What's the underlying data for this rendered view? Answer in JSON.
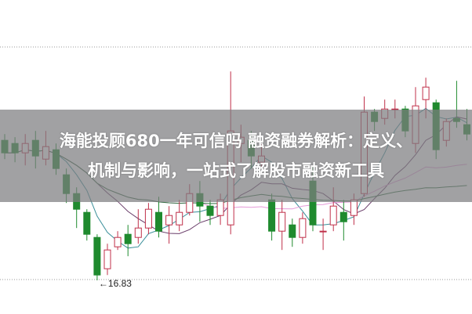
{
  "headline": {
    "line1": "海能投顾680一年可信吗 融资融券解析：定义、",
    "line2": "机制与影响，一站式了解股市融资新工具"
  },
  "chart_data": {
    "type": "candlestick",
    "low_marker_label": "←16.83",
    "low_value": 16.83,
    "colors": {
      "up": "#c0304a",
      "down": "#1f8a2e",
      "ma5": "#3a8f9a",
      "ma10": "#6a3d6a",
      "ma20": "#e59ad8",
      "ma60": "#2f6e3f",
      "grid": "#999999"
    },
    "grid": "dotted horizontal",
    "ohlc": [
      [
        21.3,
        20.9,
        21.5,
        20.7
      ],
      [
        21.2,
        20.9,
        21.4,
        20.6
      ],
      [
        20.9,
        21.2,
        21.5,
        20.5
      ],
      [
        21.3,
        20.8,
        21.6,
        20.4
      ],
      [
        20.7,
        21.1,
        21.6,
        20.5
      ],
      [
        21.0,
        20.4,
        21.2,
        20.2
      ],
      [
        20.2,
        19.6,
        20.4,
        19.3
      ],
      [
        19.6,
        19.1,
        19.8,
        18.5
      ],
      [
        19.0,
        18.3,
        19.1,
        18.1
      ],
      [
        18.2,
        17.0,
        18.3,
        16.83
      ],
      [
        17.2,
        17.8,
        18.0,
        17.0
      ],
      [
        17.9,
        18.2,
        18.4,
        17.8
      ],
      [
        18.3,
        18.0,
        18.6,
        17.6
      ],
      [
        18.2,
        18.5,
        19.1,
        18.0
      ],
      [
        18.5,
        19.1,
        19.3,
        18.3
      ],
      [
        19.0,
        18.4,
        19.5,
        18.2
      ],
      [
        18.6,
        18.9,
        19.2,
        18.0
      ],
      [
        18.6,
        19.0,
        19.4,
        18.4
      ],
      [
        19.0,
        19.6,
        19.9,
        18.9
      ],
      [
        19.6,
        19.2,
        20.0,
        18.7
      ],
      [
        19.2,
        18.9,
        19.4,
        18.6
      ],
      [
        18.9,
        19.4,
        19.6,
        18.6
      ],
      [
        18.6,
        21.6,
        23.5,
        18.3
      ],
      [
        21.2,
        21.4,
        21.8,
        20.6
      ],
      [
        21.3,
        20.8,
        21.6,
        20.4
      ],
      [
        20.6,
        20.8,
        21.2,
        20.4
      ],
      [
        19.4,
        18.4,
        19.6,
        18.1
      ],
      [
        18.4,
        19.0,
        19.4,
        17.8
      ],
      [
        18.6,
        18.2,
        18.8,
        17.9
      ],
      [
        18.2,
        18.8,
        19.0,
        18.0
      ],
      [
        20.0,
        18.6,
        20.5,
        18.4
      ],
      [
        18.4,
        18.4,
        18.8,
        17.8
      ],
      [
        18.6,
        19.2,
        19.8,
        18.4
      ],
      [
        19.0,
        18.7,
        19.4,
        18.1
      ],
      [
        18.9,
        19.4,
        19.6,
        18.6
      ],
      [
        19.6,
        22.2,
        22.7,
        19.5
      ],
      [
        22.2,
        21.9,
        22.3,
        21.6
      ],
      [
        22.0,
        22.3,
        22.6,
        21.8
      ],
      [
        22.3,
        22.3,
        22.6,
        22.0
      ],
      [
        22.3,
        21.6,
        22.4,
        21.4
      ],
      [
        21.2,
        22.4,
        23.0,
        20.9
      ],
      [
        22.6,
        23.0,
        23.3,
        22.0
      ],
      [
        22.5,
        21.0,
        22.6,
        20.7
      ],
      [
        21.3,
        21.9,
        22.0,
        21.1
      ],
      [
        22.0,
        21.9,
        23.2,
        21.7
      ],
      [
        21.8,
        21.5,
        22.3,
        21.3
      ]
    ]
  }
}
